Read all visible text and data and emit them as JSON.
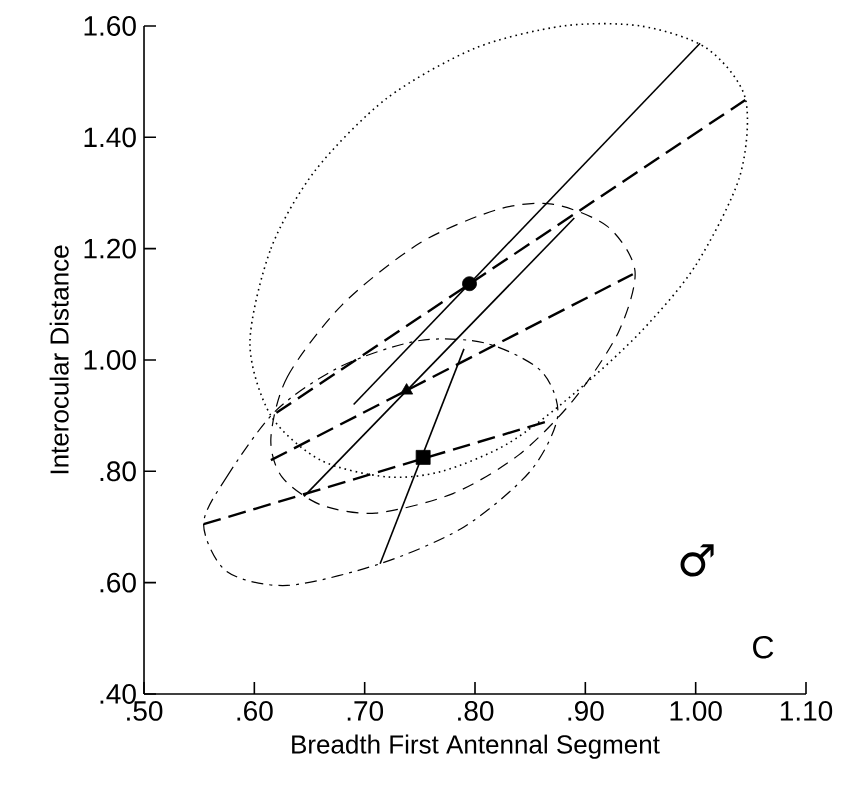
{
  "chart_data": {
    "type": "line",
    "xlabel": "Breadth First Antennal Segment",
    "ylabel": "Interocular Distance",
    "xlim": [
      0.5,
      1.1
    ],
    "ylim": [
      0.4,
      1.6
    ],
    "xticks": [
      {
        "value": 0.5,
        "label": ".50"
      },
      {
        "value": 0.6,
        "label": ".60"
      },
      {
        "value": 0.7,
        "label": ".70"
      },
      {
        "value": 0.8,
        "label": ".80"
      },
      {
        "value": 0.9,
        "label": ".90"
      },
      {
        "value": 1.0,
        "label": "1.00"
      },
      {
        "value": 1.1,
        "label": "1.10"
      }
    ],
    "yticks": [
      {
        "value": 0.4,
        "label": ".40"
      },
      {
        "value": 0.6,
        "label": ".60"
      },
      {
        "value": 0.8,
        "label": ".80"
      },
      {
        "value": 1.0,
        "label": "1.00"
      },
      {
        "value": 1.2,
        "label": "1.20"
      },
      {
        "value": 1.4,
        "label": "1.40"
      },
      {
        "value": 1.6,
        "label": "1.60"
      }
    ],
    "annotations": [
      "♂",
      "C"
    ],
    "series": [
      {
        "color": "#000000",
        "line_style": "solid",
        "x": [
          0.69,
          1.004
        ],
        "values": [
          0.92,
          1.569
        ]
      },
      {
        "color": "#000000",
        "line_style": "longdashed",
        "x": [
          0.62,
          1.045
        ],
        "values": [
          0.905,
          1.467
        ]
      },
      {
        "color": "#000000",
        "line_style": "solid",
        "x": [
          0.645,
          0.89
        ],
        "values": [
          0.755,
          1.255
        ]
      },
      {
        "color": "#000000",
        "line_style": "longdashed",
        "x": [
          0.615,
          0.943
        ],
        "values": [
          0.82,
          1.154
        ]
      },
      {
        "color": "#000000",
        "line_style": "solid",
        "x": [
          0.714,
          0.79
        ],
        "values": [
          0.634,
          1.02
        ]
      },
      {
        "color": "#000000",
        "line_style": "longdashed",
        "x": [
          0.554,
          0.868
        ],
        "values": [
          0.705,
          0.891
        ]
      },
      {
        "type": "scatter",
        "color": "#000000",
        "marker": "circle",
        "x": [
          0.795
        ],
        "values": [
          1.137
        ]
      },
      {
        "type": "scatter",
        "color": "#000000",
        "marker": "triangle",
        "x": [
          0.738
        ],
        "values": [
          0.945
        ]
      },
      {
        "type": "scatter",
        "color": "#000000",
        "marker": "square",
        "x": [
          0.753
        ],
        "values": [
          0.825
        ]
      }
    ]
  }
}
